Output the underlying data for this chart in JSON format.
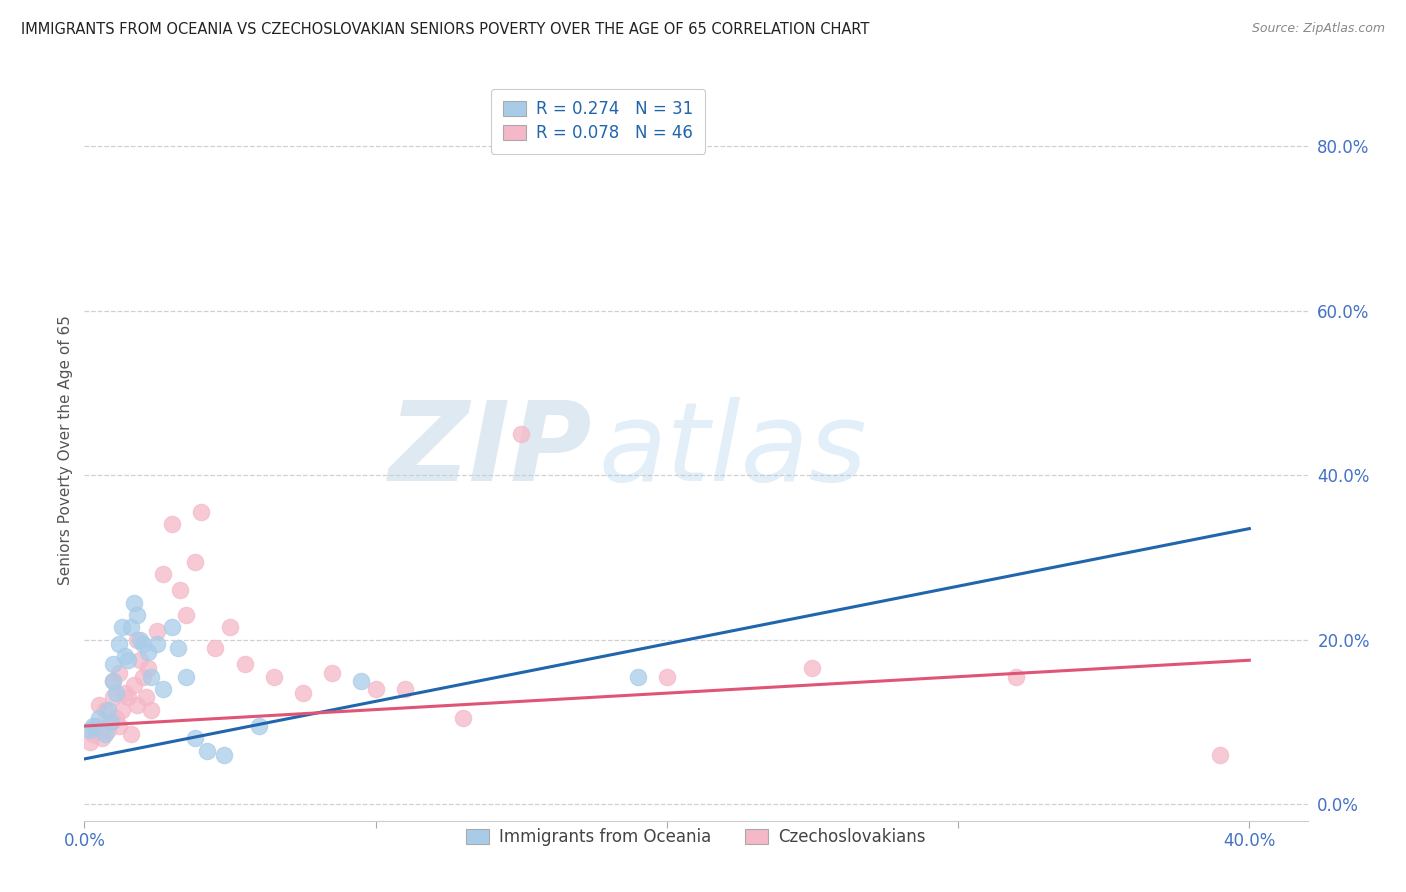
{
  "title": "IMMIGRANTS FROM OCEANIA VS CZECHOSLOVAKIAN SENIORS POVERTY OVER THE AGE OF 65 CORRELATION CHART",
  "source": "Source: ZipAtlas.com",
  "ylabel": "Seniors Poverty Over the Age of 65",
  "xlim": [
    0.0,
    0.42
  ],
  "ylim": [
    -0.02,
    0.88
  ],
  "yticks": [
    0.0,
    0.2,
    0.4,
    0.6,
    0.8
  ],
  "xticks": [
    0.0,
    0.1,
    0.2,
    0.3,
    0.4
  ],
  "xtick_labels": [
    "0.0%",
    "",
    "",
    "",
    "40.0%"
  ],
  "ytick_labels": [
    "0.0%",
    "20.0%",
    "40.0%",
    "60.0%",
    "80.0%"
  ],
  "watermark_zip": "ZIP",
  "watermark_atlas": "atlas",
  "legend_r1": "R = 0.274",
  "legend_n1": "N = 31",
  "legend_r2": "R = 0.078",
  "legend_n2": "N = 46",
  "legend_label1": "Immigrants from Oceania",
  "legend_label2": "Czechoslovakians",
  "blue_scatter_color": "#a8cce8",
  "pink_scatter_color": "#f4b8c8",
  "blue_line_color": "#2166ac",
  "pink_line_color": "#e05575",
  "title_color": "#222222",
  "axis_tick_color": "#4472c4",
  "grid_color": "#d0d0d0",
  "blue_line_x": [
    0.0,
    0.4
  ],
  "blue_line_y": [
    0.055,
    0.335
  ],
  "pink_line_x": [
    0.0,
    0.4
  ],
  "pink_line_y": [
    0.095,
    0.175
  ],
  "oceania_x": [
    0.002,
    0.003,
    0.005,
    0.007,
    0.008,
    0.009,
    0.01,
    0.01,
    0.011,
    0.012,
    0.013,
    0.014,
    0.015,
    0.016,
    0.017,
    0.018,
    0.019,
    0.02,
    0.022,
    0.023,
    0.025,
    0.027,
    0.03,
    0.032,
    0.035,
    0.038,
    0.042,
    0.048,
    0.06,
    0.095,
    0.19
  ],
  "oceania_y": [
    0.09,
    0.095,
    0.105,
    0.085,
    0.115,
    0.1,
    0.15,
    0.17,
    0.135,
    0.195,
    0.215,
    0.18,
    0.175,
    0.215,
    0.245,
    0.23,
    0.2,
    0.195,
    0.185,
    0.155,
    0.195,
    0.14,
    0.215,
    0.19,
    0.155,
    0.08,
    0.065,
    0.06,
    0.095,
    0.15,
    0.155
  ],
  "czech_x": [
    0.002,
    0.003,
    0.004,
    0.005,
    0.006,
    0.007,
    0.008,
    0.009,
    0.01,
    0.01,
    0.011,
    0.012,
    0.012,
    0.013,
    0.014,
    0.015,
    0.016,
    0.017,
    0.018,
    0.018,
    0.019,
    0.02,
    0.021,
    0.022,
    0.023,
    0.025,
    0.027,
    0.03,
    0.033,
    0.035,
    0.038,
    0.04,
    0.045,
    0.05,
    0.055,
    0.065,
    0.075,
    0.085,
    0.1,
    0.11,
    0.13,
    0.15,
    0.2,
    0.25,
    0.32,
    0.39
  ],
  "czech_y": [
    0.075,
    0.085,
    0.095,
    0.12,
    0.08,
    0.115,
    0.09,
    0.1,
    0.13,
    0.15,
    0.105,
    0.16,
    0.095,
    0.115,
    0.135,
    0.13,
    0.085,
    0.145,
    0.12,
    0.2,
    0.175,
    0.155,
    0.13,
    0.165,
    0.115,
    0.21,
    0.28,
    0.34,
    0.26,
    0.23,
    0.295,
    0.355,
    0.19,
    0.215,
    0.17,
    0.155,
    0.135,
    0.16,
    0.14,
    0.14,
    0.105,
    0.45,
    0.155,
    0.165,
    0.155,
    0.06
  ]
}
